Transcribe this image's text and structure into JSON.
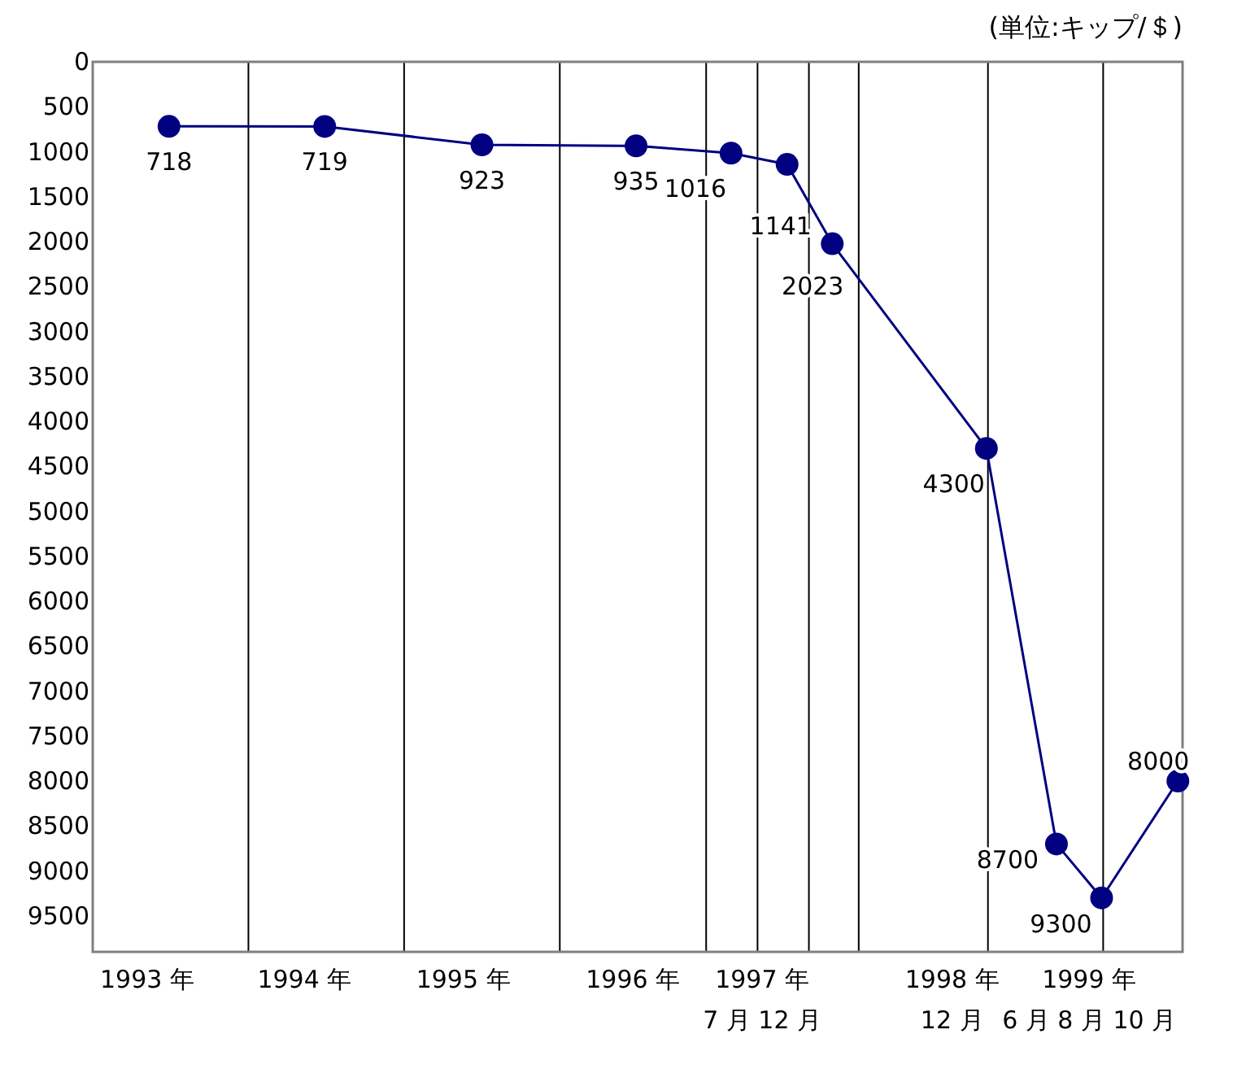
{
  "chart_data": {
    "type": "line",
    "annotations": [
      "(単位:キップ/＄)"
    ],
    "x": [
      1993.49,
      1994.49,
      1995.5,
      1996.49,
      1997.1,
      1997.46,
      1997.75,
      1998.74,
      1999.19,
      1999.48,
      1999.97
    ],
    "series": [
      {
        "color": "#000080",
        "values": [
          718,
          719,
          923,
          935,
          1016,
          1141,
          2023,
          4300,
          8700,
          9300,
          8000
        ]
      }
    ],
    "data_labels": true,
    "marker": "circle",
    "line_style": "solid",
    "xlim": [
      1993,
      2000
    ],
    "xticks": [
      {
        "value": 1993.35,
        "label": "1993 年"
      },
      {
        "value": 1994.36,
        "label": "1994 年"
      },
      {
        "value": 1995.38,
        "label": "1995 年"
      },
      {
        "value": 1996.47,
        "label": "1996 年"
      },
      {
        "value": 1997.3,
        "label": "1997 年\n7 月 12 月"
      },
      {
        "value": 1998.52,
        "label": "1998 年\n12 月"
      },
      {
        "value": 1999.4,
        "label": "1999 年\n6 月 8 月 10 月"
      }
    ],
    "ylim": [
      9900,
      0
    ],
    "yticks": [
      0,
      500,
      1000,
      1500,
      2000,
      2500,
      3000,
      3500,
      4000,
      4500,
      5000,
      5500,
      6000,
      6500,
      7000,
      7500,
      8000,
      8500,
      9000,
      9500
    ],
    "ref_lines": [
      {
        "axis": "x",
        "value": 1994,
        "color": "#000000"
      },
      {
        "axis": "x",
        "value": 1995,
        "color": "#000000"
      },
      {
        "axis": "x",
        "value": 1996,
        "color": "#000000"
      },
      {
        "axis": "x",
        "value": 1996.94,
        "color": "#000000"
      },
      {
        "axis": "x",
        "value": 1997.27,
        "color": "#000000"
      },
      {
        "axis": "x",
        "value": 1997.6,
        "color": "#000000"
      },
      {
        "axis": "x",
        "value": 1997.92,
        "color": "#000000"
      },
      {
        "axis": "x",
        "value": 1998.75,
        "color": "#000000"
      },
      {
        "axis": "x",
        "value": 1999.49,
        "color": "#000000"
      }
    ],
    "grid": false
  }
}
